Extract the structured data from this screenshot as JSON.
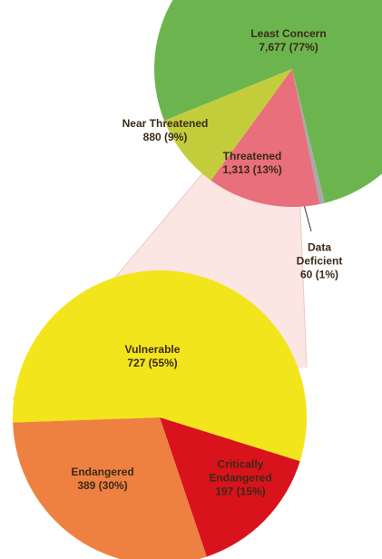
{
  "chart_data": [
    {
      "type": "pie",
      "categories": [
        "Least Concern",
        "Data Deficient",
        "Threatened",
        "Near Threatened"
      ],
      "values": [
        7677,
        60,
        1313,
        880
      ],
      "value_labels": [
        "7,677 (77%)",
        "60 (1%)",
        "1,313 (13%)",
        "880 (9%)"
      ],
      "colors": [
        "#6cb54e",
        "#a9a9a9",
        "#e86f7b",
        "#c3cd3c"
      ]
    },
    {
      "type": "pie",
      "categories": [
        "Vulnerable",
        "Critically Endangered",
        "Endangered"
      ],
      "values": [
        727,
        197,
        389
      ],
      "value_labels": [
        "727 (55%)",
        "197 (15%)",
        "389 (30%)"
      ],
      "colors": [
        "#f3e51b",
        "#d8131b",
        "#ee8142"
      ]
    }
  ]
}
